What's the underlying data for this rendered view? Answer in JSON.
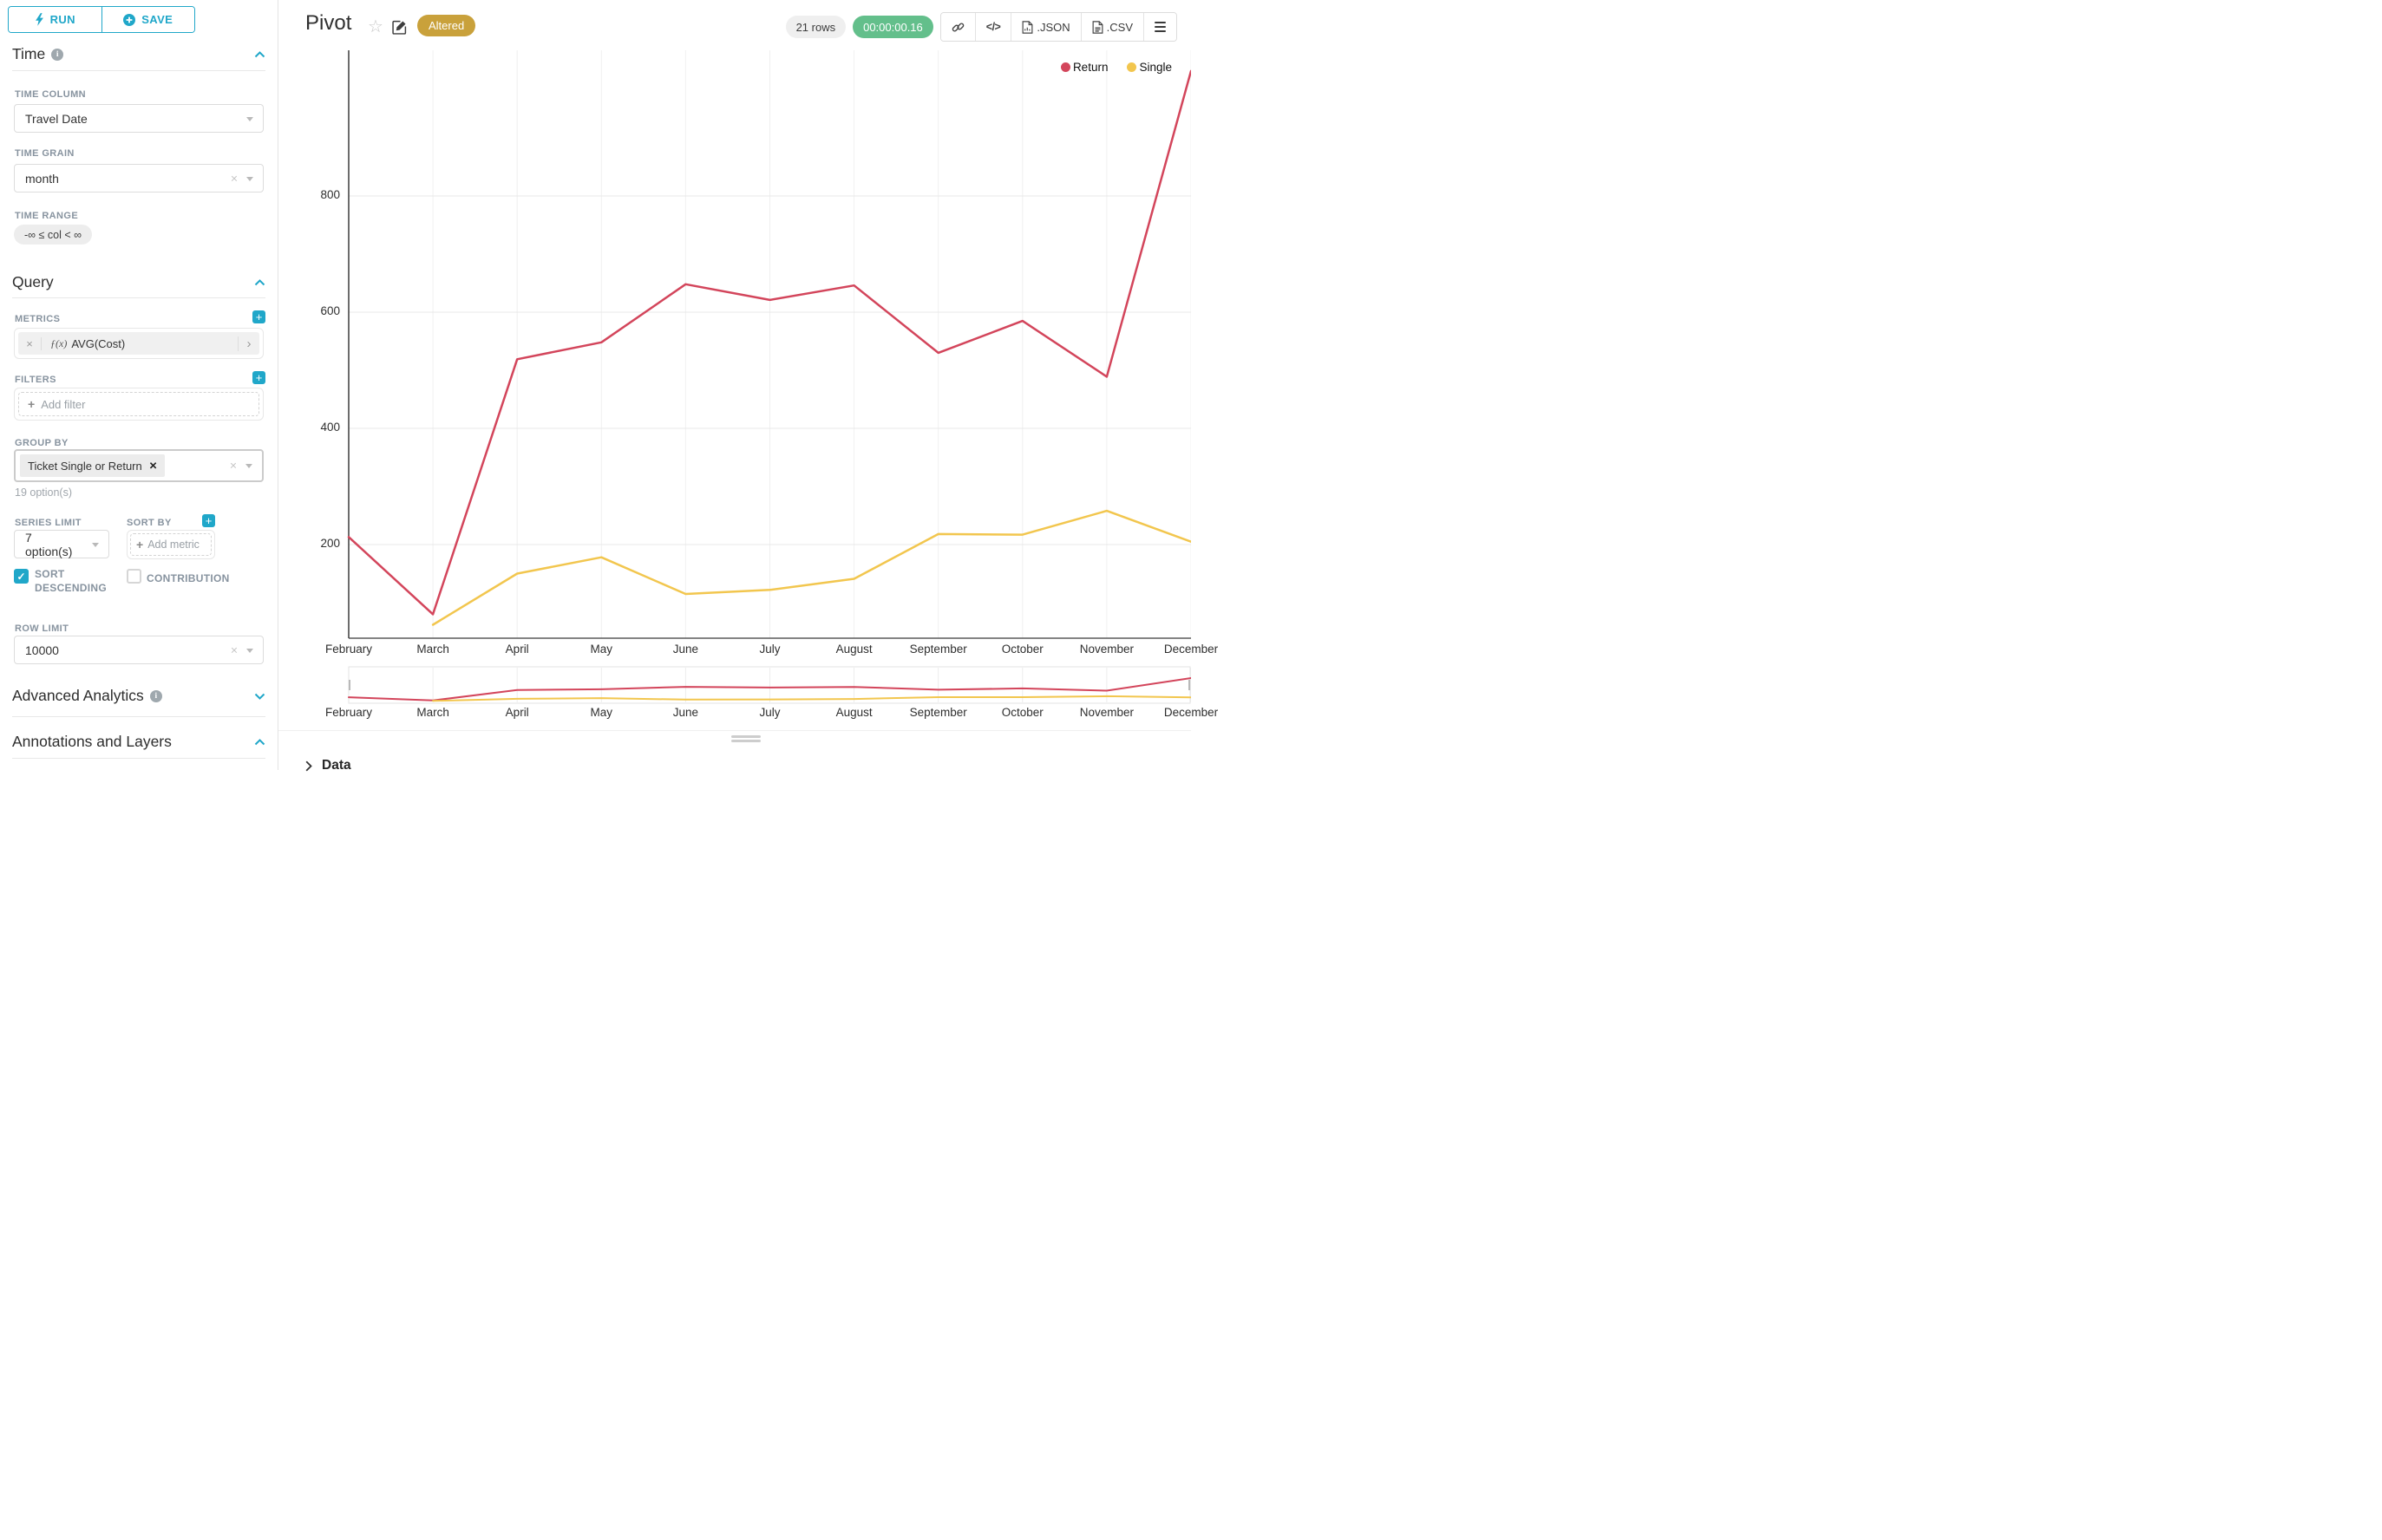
{
  "toolbar": {
    "run_label": "RUN",
    "save_label": "SAVE"
  },
  "panel": {
    "time": {
      "title": "Time",
      "time_column_label": "TIME COLUMN",
      "time_column_value": "Travel Date",
      "time_grain_label": "TIME GRAIN",
      "time_grain_value": "month",
      "time_range_label": "TIME RANGE",
      "time_range_value": "-∞ ≤ col < ∞"
    },
    "query": {
      "title": "Query",
      "metrics_label": "METRICS",
      "metric_fx": "ƒ(x)",
      "metric_value": "AVG(Cost)",
      "filters_label": "FILTERS",
      "add_filter_placeholder": "Add filter",
      "group_by_label": "GROUP BY",
      "group_by_chip": "Ticket Single or Return",
      "group_by_hint": "19 option(s)",
      "series_limit_label": "SERIES LIMIT",
      "series_limit_value": "7 option(s)",
      "sort_by_label": "SORT BY",
      "add_metric_placeholder": "Add metric",
      "sort_descending_label": "SORT DESCENDING",
      "sort_descending_checked": true,
      "contribution_label": "CONTRIBUTION",
      "contribution_checked": false,
      "row_limit_label": "ROW LIMIT",
      "row_limit_value": "10000"
    },
    "advanced_analytics_title": "Advanced Analytics",
    "annotations_title": "Annotations and Layers"
  },
  "header": {
    "title": "Pivot",
    "altered_badge": "Altered",
    "rows_badge": "21 rows",
    "timer_badge": "00:00:00.16",
    "json_label": ".JSON",
    "csv_label": ".CSV"
  },
  "data_panel": {
    "label": "Data"
  },
  "colors": {
    "accent": "#20A7C9",
    "altered_bg": "#C9A13B",
    "timer_bg": "#63BF8B",
    "rows_bg": "#EFEFEF",
    "return_series": "#D3455B",
    "single_series": "#F2C64E"
  },
  "chart_data": {
    "type": "line",
    "title": "Pivot",
    "x": [
      "February",
      "March",
      "April",
      "May",
      "June",
      "July",
      "August",
      "September",
      "October",
      "November",
      "December"
    ],
    "series": [
      {
        "name": "Return",
        "color": "#D3455B",
        "values": [
          213,
          80,
          519,
          548,
          648,
          621,
          646,
          530,
          585,
          489,
          1015
        ]
      },
      {
        "name": "Single",
        "color": "#F2C64E",
        "values": [
          null,
          62,
          150,
          178,
          115,
          122,
          141,
          218,
          217,
          258,
          205
        ]
      }
    ],
    "yticks": [
      200,
      400,
      600,
      800
    ],
    "xlabel": "",
    "ylabel": "",
    "ylim_visible": [
      40,
      1000
    ],
    "grid": true,
    "legend_position": "top-right",
    "note_top_series_clipped": "Return December value exits the visible plot area",
    "minimap": true
  }
}
